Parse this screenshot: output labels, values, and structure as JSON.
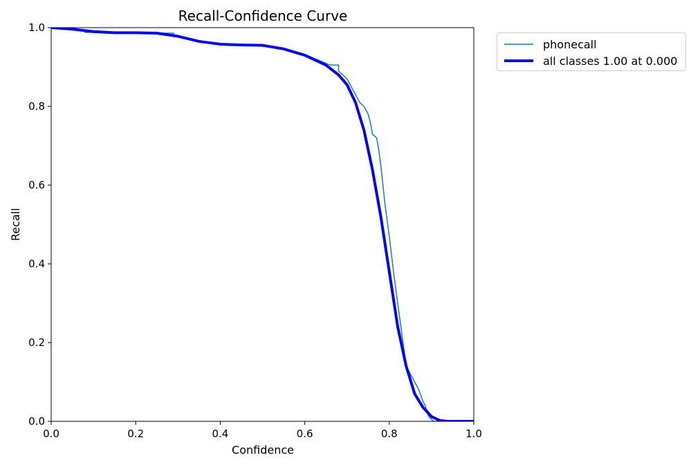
{
  "chart_data": {
    "type": "line",
    "title": "Recall-Confidence Curve",
    "xlabel": "Confidence",
    "ylabel": "Recall",
    "xlim": [
      0.0,
      1.0
    ],
    "ylim": [
      0.0,
      1.0
    ],
    "xticks": [
      "0.0",
      "0.2",
      "0.4",
      "0.6",
      "0.8",
      "1.0"
    ],
    "yticks": [
      "0.0",
      "0.2",
      "0.4",
      "0.6",
      "0.8",
      "1.0"
    ],
    "grid": false,
    "legend_position": "outside-top-right",
    "series": [
      {
        "name": "phonecall",
        "color": "#1f77b4",
        "x": [
          0.0,
          0.03,
          0.08,
          0.08,
          0.1,
          0.13,
          0.2,
          0.25,
          0.29,
          0.29,
          0.3,
          0.35,
          0.4,
          0.45,
          0.5,
          0.55,
          0.6,
          0.64,
          0.66,
          0.66,
          0.68,
          0.68,
          0.69,
          0.7,
          0.71,
          0.72,
          0.73,
          0.74,
          0.75,
          0.755,
          0.76,
          0.77,
          0.775,
          0.78,
          0.785,
          0.79,
          0.8,
          0.81,
          0.82,
          0.83,
          0.835,
          0.84,
          0.845,
          0.85,
          0.86,
          0.87,
          0.88,
          0.885,
          0.89,
          0.895,
          0.9,
          0.905,
          0.91,
          1.0
        ],
        "y": [
          1.0,
          0.997,
          0.993,
          0.988,
          0.988,
          0.986,
          0.986,
          0.986,
          0.986,
          0.978,
          0.977,
          0.966,
          0.959,
          0.956,
          0.955,
          0.948,
          0.932,
          0.914,
          0.905,
          0.905,
          0.905,
          0.89,
          0.88,
          0.87,
          0.85,
          0.83,
          0.81,
          0.8,
          0.78,
          0.76,
          0.73,
          0.72,
          0.69,
          0.65,
          0.6,
          0.55,
          0.47,
          0.38,
          0.3,
          0.22,
          0.18,
          0.14,
          0.13,
          0.12,
          0.1,
          0.08,
          0.05,
          0.04,
          0.02,
          0.01,
          0.005,
          0.0,
          0.0,
          0.0
        ]
      },
      {
        "name": "all classes 1.00 at 0.000",
        "color": "#0000ff",
        "x": [
          0.0,
          0.05,
          0.1,
          0.15,
          0.2,
          0.25,
          0.3,
          0.35,
          0.4,
          0.45,
          0.5,
          0.55,
          0.6,
          0.65,
          0.68,
          0.7,
          0.72,
          0.74,
          0.76,
          0.78,
          0.8,
          0.82,
          0.84,
          0.86,
          0.88,
          0.9,
          0.92,
          0.94,
          0.96,
          1.0
        ],
        "y": [
          1.0,
          0.996,
          0.99,
          0.987,
          0.987,
          0.986,
          0.978,
          0.965,
          0.958,
          0.956,
          0.955,
          0.946,
          0.93,
          0.905,
          0.88,
          0.855,
          0.81,
          0.74,
          0.64,
          0.52,
          0.38,
          0.24,
          0.14,
          0.07,
          0.035,
          0.012,
          0.002,
          0.0,
          0.0,
          0.0
        ]
      }
    ]
  }
}
